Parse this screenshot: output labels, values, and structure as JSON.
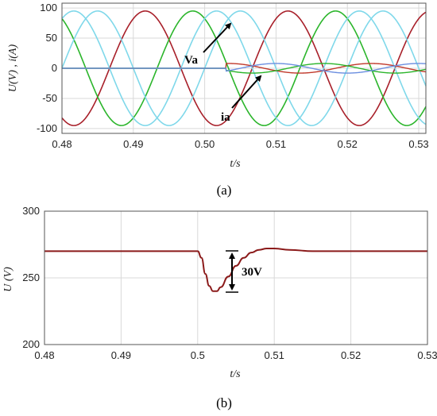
{
  "chart_data": [
    {
      "type": "line",
      "panel": "(a)",
      "xlabel": "t/s",
      "ylabel": "U(V) , i(A)",
      "xlim": [
        0.48,
        0.531
      ],
      "ylim": [
        -108,
        108
      ],
      "xticks": [
        "0.48",
        "0.49",
        "0.50",
        "0.51",
        "0.52",
        "0.53"
      ],
      "xtick_values": [
        0.48,
        0.49,
        0.5,
        0.51,
        0.52,
        0.53
      ],
      "yticks": [
        "100",
        "50",
        "0",
        "-50",
        "-100"
      ],
      "ytick_values": [
        100,
        50,
        0,
        -50,
        -100
      ],
      "grid": true,
      "frequency_hz": 50,
      "fault_time": 0.503,
      "series": [
        {
          "kind": "voltage",
          "amplitude": 95,
          "phase_deg": -120,
          "color": "#a8202a"
        },
        {
          "kind": "voltage",
          "amplitude": 95,
          "phase_deg": 120,
          "color": "#2bb52b"
        },
        {
          "kind": "voltage",
          "amplitude": 95,
          "phase_deg": 0,
          "color": "#7fd8ea"
        },
        {
          "kind": "voltage",
          "amplitude": 95,
          "phase_deg": 60,
          "color": "#7fd8ea"
        },
        {
          "kind": "current",
          "amplitude_before": 0,
          "amplitude_after": 8,
          "phase_deg": 30,
          "color": "#c0392b"
        },
        {
          "kind": "current",
          "amplitude_before": 0,
          "amplitude_after": 8,
          "phase_deg": 150,
          "color": "#2bb52b"
        },
        {
          "kind": "current",
          "amplitude_before": 0,
          "amplitude_after": 8,
          "phase_deg": 270,
          "color": "#6c8fe0"
        }
      ],
      "annotations": [
        "Va",
        "ia"
      ]
    },
    {
      "type": "line",
      "panel": "(b)",
      "xlabel": "t/s",
      "ylabel": "U (V)",
      "xlim": [
        0.48,
        0.53
      ],
      "ylim": [
        200,
        300
      ],
      "xticks": [
        "0.48",
        "0.49",
        "0.5",
        "0.51",
        "0.52",
        "0.53"
      ],
      "xtick_values": [
        0.48,
        0.49,
        0.5,
        0.51,
        0.52,
        0.53
      ],
      "yticks": [
        "300",
        "250",
        "200"
      ],
      "ytick_values": [
        300,
        250,
        200
      ],
      "grid": true,
      "series": [
        {
          "color": "#8b1a1a",
          "x": [
            0.48,
            0.49,
            0.5,
            0.5005,
            0.501,
            0.5015,
            0.502,
            0.5025,
            0.503,
            0.504,
            0.505,
            0.506,
            0.507,
            0.508,
            0.509,
            0.51,
            0.512,
            0.515,
            0.52,
            0.53
          ],
          "y": [
            270,
            270,
            270,
            265,
            253,
            244,
            240,
            240,
            243,
            251,
            259,
            265,
            269,
            271,
            272,
            272,
            271,
            270,
            270,
            270
          ]
        }
      ],
      "annotations": [
        "30V"
      ]
    }
  ],
  "captions": {
    "a": "(a)",
    "b": "(b)"
  }
}
